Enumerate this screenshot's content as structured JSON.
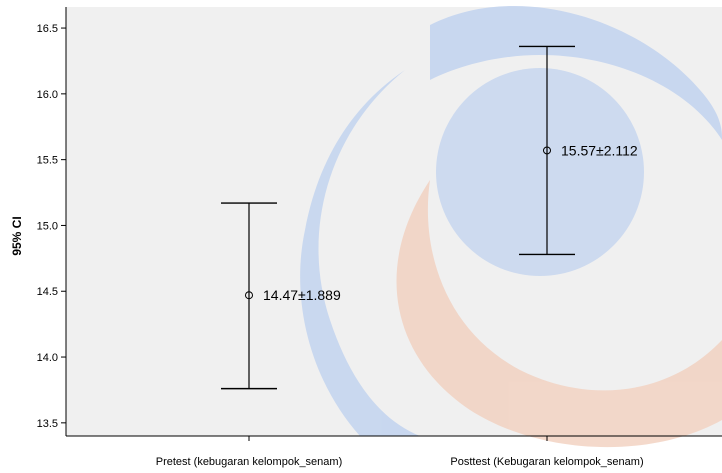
{
  "chart_data": {
    "type": "errorbar",
    "title": "",
    "xlabel": "",
    "ylabel": "95% CI",
    "ylim": [
      13.4,
      16.66
    ],
    "yticks": [
      "13.5",
      "14.0",
      "14.5",
      "15.0",
      "15.5",
      "16.0",
      "16.5"
    ],
    "grid": false,
    "categories": [
      "Pretest (kebugaran kelompok_senam)",
      "Posttest (Kebugaran kelompok_senam)"
    ],
    "points": [
      {
        "category": "Pretest (kebugaran kelompok_senam)",
        "mean": 14.47,
        "lower": 13.76,
        "upper": 15.17,
        "label": "14.47±1.889"
      },
      {
        "category": "Posttest (Kebugaran kelompok_senam)",
        "mean": 15.57,
        "lower": 14.78,
        "upper": 16.36,
        "label": "15.57±2.112"
      }
    ]
  },
  "colors": {
    "plot_background": "#f0f0f0",
    "axis": "#000000",
    "error_bar": "#000000",
    "watermark_blue": "#b7cdf0",
    "watermark_orange": "#f2c9b6"
  }
}
